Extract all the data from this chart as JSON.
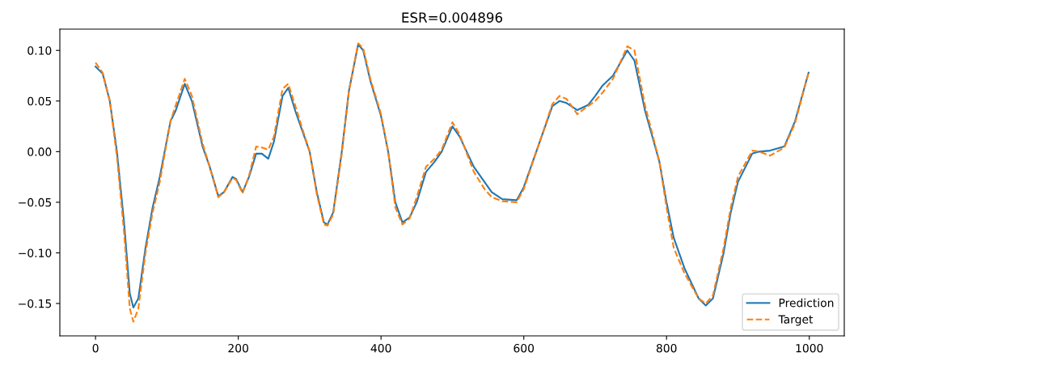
{
  "chart_data": {
    "type": "line",
    "title": "ESR=0.004896",
    "x": [
      0,
      10,
      20,
      30,
      40,
      48,
      53,
      60,
      70,
      80,
      90,
      105,
      112,
      125,
      135,
      150,
      160,
      172,
      180,
      192,
      197,
      206,
      215,
      225,
      233,
      242,
      250,
      262,
      270,
      280,
      290,
      300,
      310,
      320,
      325,
      333,
      345,
      355,
      368,
      375,
      385,
      400,
      410,
      420,
      430,
      440,
      450,
      463,
      475,
      485,
      500,
      510,
      530,
      545,
      555,
      570,
      590,
      600,
      620,
      640,
      650,
      660,
      675,
      690,
      700,
      710,
      725,
      745,
      755,
      770,
      780,
      790,
      800,
      810,
      825,
      845,
      855,
      865,
      880,
      890,
      900,
      920,
      930,
      945,
      965,
      980,
      999
    ],
    "series": [
      {
        "name": "Prediction",
        "color": "#1f77b4",
        "line_style": "solid",
        "values": [
          0.084,
          0.077,
          0.05,
          0.0,
          -0.07,
          -0.14,
          -0.154,
          -0.145,
          -0.095,
          -0.055,
          -0.025,
          0.03,
          0.04,
          0.067,
          0.05,
          0.005,
          -0.015,
          -0.044,
          -0.04,
          -0.025,
          -0.027,
          -0.04,
          -0.025,
          -0.002,
          -0.002,
          -0.007,
          0.01,
          0.055,
          0.063,
          0.04,
          0.02,
          0.0,
          -0.04,
          -0.07,
          -0.072,
          -0.06,
          0.0,
          0.06,
          0.106,
          0.1,
          0.07,
          0.035,
          0.0,
          -0.05,
          -0.07,
          -0.065,
          -0.05,
          -0.02,
          -0.01,
          0.0,
          0.025,
          0.015,
          -0.015,
          -0.03,
          -0.04,
          -0.047,
          -0.048,
          -0.035,
          0.005,
          0.045,
          0.05,
          0.048,
          0.041,
          0.046,
          0.055,
          0.065,
          0.075,
          0.1,
          0.09,
          0.04,
          0.015,
          -0.01,
          -0.05,
          -0.085,
          -0.115,
          -0.145,
          -0.152,
          -0.145,
          -0.1,
          -0.06,
          -0.03,
          -0.002,
          0.0,
          0.001,
          0.005,
          0.03,
          0.078
        ]
      },
      {
        "name": "Target",
        "color": "#ff7f0e",
        "line_style": "dashed",
        "values": [
          0.088,
          0.078,
          0.05,
          -0.005,
          -0.08,
          -0.155,
          -0.168,
          -0.155,
          -0.1,
          -0.06,
          -0.03,
          0.03,
          0.045,
          0.072,
          0.055,
          0.008,
          -0.015,
          -0.045,
          -0.04,
          -0.026,
          -0.028,
          -0.041,
          -0.024,
          0.005,
          0.004,
          0.002,
          0.015,
          0.062,
          0.067,
          0.045,
          0.022,
          0.0,
          -0.042,
          -0.072,
          -0.073,
          -0.062,
          -0.002,
          0.06,
          0.107,
          0.102,
          0.072,
          0.037,
          0.0,
          -0.055,
          -0.072,
          -0.066,
          -0.045,
          -0.015,
          -0.007,
          0.002,
          0.029,
          0.017,
          -0.02,
          -0.037,
          -0.045,
          -0.049,
          -0.05,
          -0.037,
          0.005,
          0.047,
          0.055,
          0.052,
          0.037,
          0.045,
          0.05,
          0.058,
          0.072,
          0.104,
          0.1,
          0.045,
          0.018,
          -0.01,
          -0.055,
          -0.095,
          -0.12,
          -0.145,
          -0.15,
          -0.142,
          -0.095,
          -0.055,
          -0.025,
          0.001,
          0.0,
          -0.004,
          0.004,
          0.028,
          0.078
        ]
      }
    ],
    "xlim": [
      -50,
      1049
    ],
    "ylim": [
      -0.182,
      0.121
    ],
    "xticks": [
      0,
      200,
      400,
      600,
      800,
      1000
    ],
    "yticks": [
      {
        "value": -0.15,
        "label": "−0.15"
      },
      {
        "value": -0.1,
        "label": "−0.10"
      },
      {
        "value": -0.05,
        "label": "−0.05"
      },
      {
        "value": 0.0,
        "label": "0.00"
      },
      {
        "value": 0.05,
        "label": "0.05"
      },
      {
        "value": 0.1,
        "label": "0.10"
      }
    ],
    "legend": "bottom right",
    "grid": false
  }
}
